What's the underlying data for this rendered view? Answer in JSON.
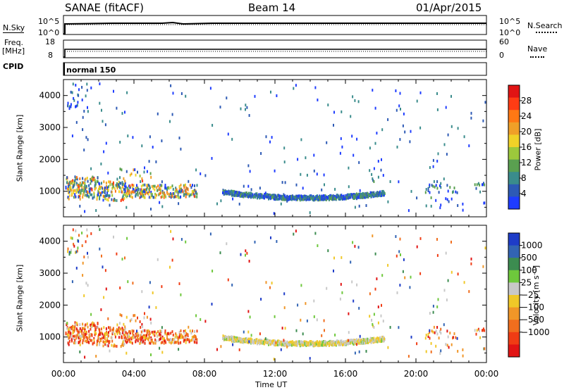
{
  "header": {
    "radar": "SANAE (fitACF)",
    "beam": "Beam 14",
    "date": "01/Apr/2015"
  },
  "sky_panel": {
    "left_label": "N.Sky",
    "left_ticks": [
      "10^5",
      "10^0"
    ],
    "right_label": "N.Search",
    "right_ticks": [
      "10^5",
      "10^0"
    ]
  },
  "freq_panel": {
    "left_label_1": "Freq.",
    "left_label_2": "[MHz]",
    "left_ticks": [
      "18",
      "8"
    ],
    "right_label": "Nave",
    "right_ticks": [
      "60",
      "0"
    ]
  },
  "cpid": {
    "label": "CPID",
    "value": "normal 150"
  },
  "chart_data": [
    {
      "type": "heatmap",
      "name": "power",
      "ylabel": "Slant Range [km]",
      "ylim": [
        200,
        4500
      ],
      "yticks": [
        1000,
        2000,
        3000,
        4000
      ],
      "xlim": [
        0,
        24
      ],
      "colorbar": {
        "label": "Power [dB]",
        "ticks": [
          4,
          8,
          12,
          16,
          20,
          24,
          28
        ],
        "range": [
          0,
          32
        ],
        "colors": [
          "#1e3cff",
          "#2d5ab5",
          "#3a8c8c",
          "#5aa050",
          "#9cc83c",
          "#f0d228",
          "#f0a028",
          "#ff7814",
          "#ff3c14",
          "#e11414"
        ]
      }
    },
    {
      "type": "heatmap",
      "name": "velocity",
      "ylabel": "Slant Range [km]",
      "ylim": [
        200,
        4500
      ],
      "yticks": [
        1000,
        2000,
        3000,
        4000
      ],
      "xlim": [
        0,
        24
      ],
      "colorbar": {
        "label": "Velocity [m s⁻¹]",
        "ticks": [
          "1000",
          "500",
          "100",
          "25",
          "−25",
          "−100",
          "−500",
          "−1000"
        ],
        "colors": [
          "#1e3cc8",
          "#3264b4",
          "#3c8c50",
          "#6ec83c",
          "#c8c8c8",
          "#f0c828",
          "#f09628",
          "#f06e1e",
          "#f03c14",
          "#e11414"
        ]
      }
    }
  ],
  "x_axis": {
    "ticks": [
      "00:00",
      "04:00",
      "08:00",
      "12:00",
      "16:00",
      "20:00",
      "00:00"
    ],
    "label": "Time UT"
  }
}
